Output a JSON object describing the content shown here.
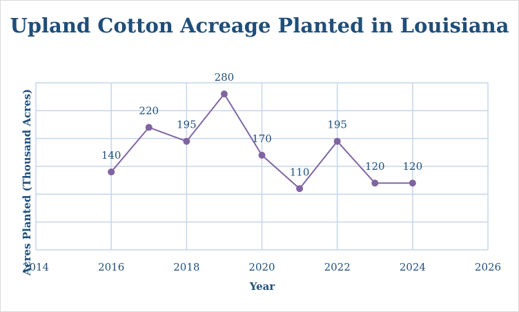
{
  "chart_data": {
    "type": "line",
    "title": "Upland Cotton Acreage Planted in Louisiana",
    "xlabel": "Year",
    "ylabel": "Acres Planted (Thousand Acres)",
    "xlim": [
      2014,
      2026
    ],
    "ylim": [
      0,
      300
    ],
    "x_ticks": [
      2014,
      2016,
      2018,
      2020,
      2022,
      2024,
      2026
    ],
    "y_ticks_labeled": [],
    "grid": true,
    "legend": "none",
    "series": [
      {
        "x": [
          2016,
          2017,
          2018,
          2019,
          2020,
          2021,
          2022,
          2023,
          2024
        ],
        "values": [
          140,
          220,
          195,
          280,
          170,
          110,
          195,
          120,
          120
        ],
        "labels": [
          "140",
          "220",
          "195",
          "280",
          "170",
          "110",
          "195",
          "120",
          "120"
        ]
      }
    ],
    "colors": {
      "line": "#8064a2",
      "marker": "#8064a2",
      "grid": "#c5d5e8",
      "text": "#1f4e79"
    }
  }
}
